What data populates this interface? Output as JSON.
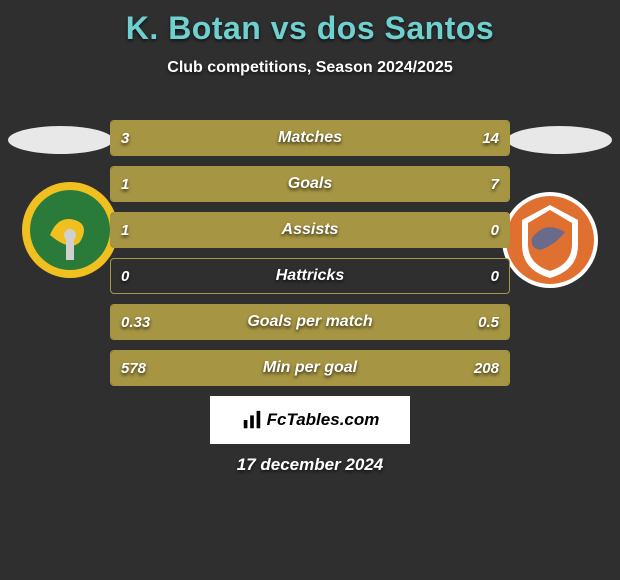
{
  "header": {
    "title": "K. Botan vs dos Santos",
    "title_color": "#6fd0d0",
    "subtitle": "Club competitions, Season 2024/2025"
  },
  "players": {
    "left": {
      "crest_name": "Persebaya",
      "crest_bg": "#2a7a3a",
      "crest_ring": "#f0c020"
    },
    "right": {
      "crest_name": "Borneo",
      "crest_bg": "#e07030",
      "crest_ring": "#ffffff"
    }
  },
  "chart": {
    "type": "horizontal-dual-bar",
    "bar_border_color": "#a69542",
    "bar_fill_color": "#a69542",
    "background_color": "#2f2f2f",
    "label_fontsize": 16,
    "value_fontsize": 15,
    "rows": [
      {
        "label": "Matches",
        "left_val": "3",
        "right_val": "14",
        "left_pct": 18,
        "right_pct": 82
      },
      {
        "label": "Goals",
        "left_val": "1",
        "right_val": "7",
        "left_pct": 13,
        "right_pct": 87
      },
      {
        "label": "Assists",
        "left_val": "1",
        "right_val": "0",
        "left_pct": 100,
        "right_pct": 0
      },
      {
        "label": "Hattricks",
        "left_val": "0",
        "right_val": "0",
        "left_pct": 0,
        "right_pct": 0
      },
      {
        "label": "Goals per match",
        "left_val": "0.33",
        "right_val": "0.5",
        "left_pct": 40,
        "right_pct": 60
      },
      {
        "label": "Min per goal",
        "left_val": "578",
        "right_val": "208",
        "left_pct": 26,
        "right_pct": 74
      }
    ]
  },
  "footer": {
    "brand": "FcTables.com",
    "date": "17 december 2024"
  }
}
